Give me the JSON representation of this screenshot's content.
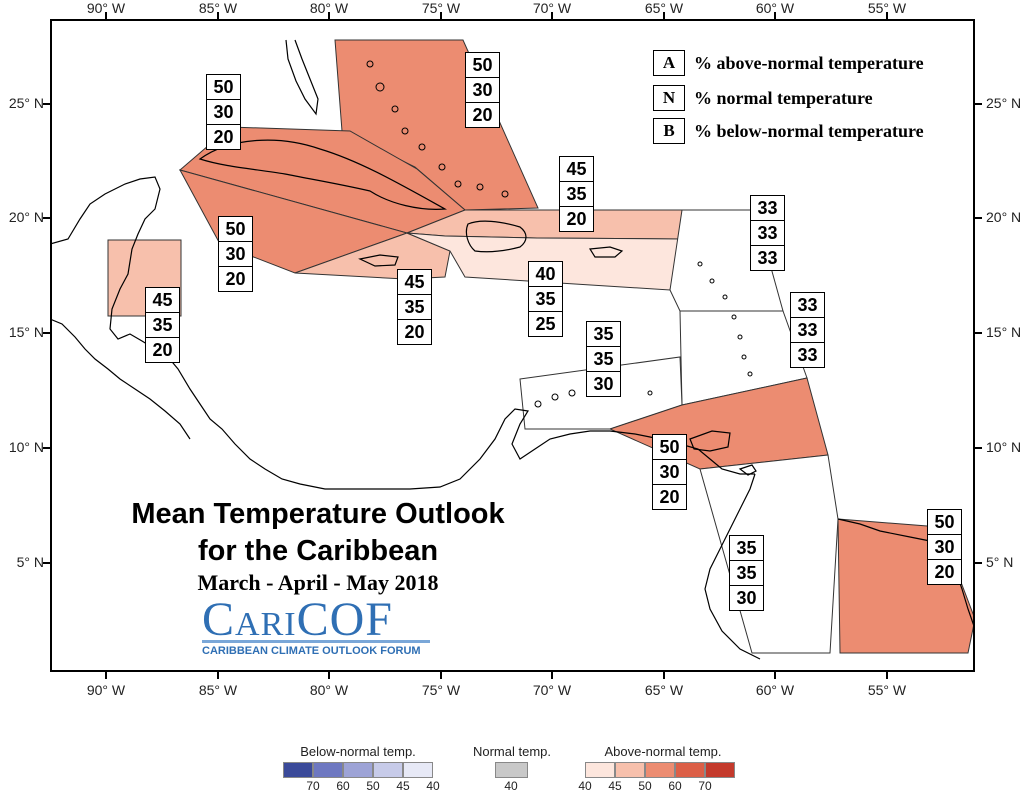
{
  "axes": {
    "lon_labels": [
      "90° W",
      "85° W",
      "80° W",
      "75° W",
      "70° W",
      "65° W",
      "60° W",
      "55° W"
    ],
    "lat_labels": [
      "25° N",
      "20° N",
      "15° N",
      "10° N",
      "5° N"
    ]
  },
  "legend": [
    {
      "key": "A",
      "text": "% above-normal temperature"
    },
    {
      "key": "N",
      "text": "% normal temperature"
    },
    {
      "key": "B",
      "text": "% below-normal temperature"
    }
  ],
  "title": {
    "line1": "Mean Temperature Outlook",
    "line2": "for the Caribbean",
    "period": "March - April - May 2018"
  },
  "logo": {
    "wordmark": "CariCOF",
    "caption": "CARIBBEAN CLIMATE OUTLOOK FORUM"
  },
  "colorbar": {
    "below_label": "Below-normal temp.",
    "normal_label": "Normal temp.",
    "above_label": "Above-normal temp.",
    "below_ticks": [
      "70",
      "60",
      "50",
      "45",
      "40"
    ],
    "normal_ticks": [
      "40"
    ],
    "above_ticks": [
      "40",
      "45",
      "50",
      "60",
      "70"
    ],
    "below_colors": [
      "#3b4a9a",
      "#6e78c1",
      "#9da3d6",
      "#c7cbe9",
      "#e7e9f6"
    ],
    "normal_color": "#c8c8c8",
    "above_colors": [
      "#fde6dd",
      "#f7c0ac",
      "#ec8c71",
      "#dc5f47",
      "#c43a2c"
    ]
  },
  "regions": [
    {
      "id": "bahamas",
      "probs": [
        "50",
        "30",
        "20"
      ],
      "color": "#ec8c71"
    },
    {
      "id": "cuba",
      "probs": [
        "50",
        "30",
        "20"
      ],
      "color": "#ec8c71"
    },
    {
      "id": "cayman-jamaica-west",
      "probs": [
        "50",
        "30",
        "20"
      ],
      "color": "#ec8c71"
    },
    {
      "id": "jamaica",
      "probs": [
        "45",
        "35",
        "20"
      ],
      "color": "#f7c0ac"
    },
    {
      "id": "belize",
      "probs": [
        "45",
        "35",
        "20"
      ],
      "color": "#f7c0ac"
    },
    {
      "id": "hispaniola-north",
      "probs": [
        "45",
        "35",
        "20"
      ],
      "color": "#f7c0ac"
    },
    {
      "id": "hispaniola-south",
      "probs": [
        "40",
        "35",
        "25"
      ],
      "color": "#fde6dd"
    },
    {
      "id": "leeward",
      "probs": [
        "33",
        "33",
        "33"
      ],
      "color": "#ffffff"
    },
    {
      "id": "windward",
      "probs": [
        "33",
        "33",
        "33"
      ],
      "color": "#ffffff"
    },
    {
      "id": "abc-islands",
      "probs": [
        "35",
        "35",
        "30"
      ],
      "color": "#ffffff"
    },
    {
      "id": "trinidad",
      "probs": [
        "50",
        "30",
        "20"
      ],
      "color": "#ec8c71"
    },
    {
      "id": "guyana",
      "probs": [
        "35",
        "35",
        "30"
      ],
      "color": "#ffffff"
    },
    {
      "id": "suriname-guiana",
      "probs": [
        "50",
        "30",
        "20"
      ],
      "color": "#ec8c71"
    }
  ]
}
